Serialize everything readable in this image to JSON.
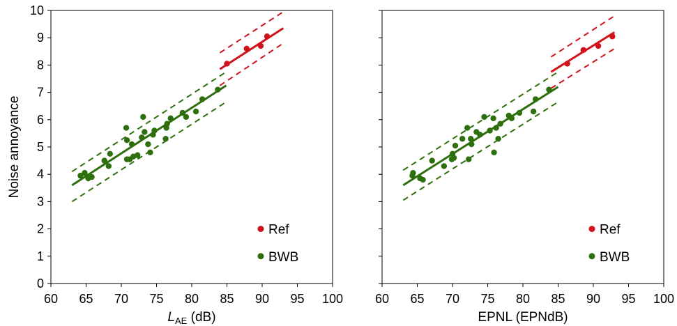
{
  "chart_data": [
    {
      "type": "scatter",
      "title": "",
      "xlabel": "L",
      "xlabel_sub": "AE",
      "xlabel_unit": "(dB)",
      "ylabel": "Noise annoyance",
      "xlim": [
        60,
        100
      ],
      "ylim": [
        0,
        10
      ],
      "xticks": [
        "60",
        "65",
        "70",
        "75",
        "80",
        "85",
        "90",
        "95",
        "100"
      ],
      "yticks": [
        "0",
        "1",
        "2",
        "3",
        "4",
        "5",
        "6",
        "7",
        "8",
        "9",
        "10"
      ],
      "grid": false,
      "legend_position": "bottom-right",
      "series": [
        {
          "name": "Ref",
          "color": "#d0121b",
          "points": [
            [
              85.0,
              8.05
            ],
            [
              87.8,
              8.6
            ],
            [
              89.8,
              8.7
            ],
            [
              90.7,
              9.05
            ]
          ],
          "fit": {
            "x": [
              84.0,
              93.0
            ],
            "y": [
              7.85,
              9.35
            ]
          },
          "band": {
            "x": [
              84.0,
              93.0
            ],
            "upper": [
              8.45,
              9.95
            ],
            "lower": [
              7.25,
              8.8
            ]
          }
        },
        {
          "name": "BWB",
          "color": "#2e6f0d",
          "points": [
            [
              64.2,
              3.95
            ],
            [
              64.8,
              4.05
            ],
            [
              65.3,
              3.85
            ],
            [
              65.8,
              3.9
            ],
            [
              67.6,
              4.5
            ],
            [
              68.2,
              4.3
            ],
            [
              68.4,
              4.75
            ],
            [
              70.7,
              5.7
            ],
            [
              70.8,
              5.25
            ],
            [
              70.8,
              4.55
            ],
            [
              71.2,
              4.55
            ],
            [
              71.5,
              5.1
            ],
            [
              71.7,
              4.65
            ],
            [
              72.3,
              4.7
            ],
            [
              72.9,
              5.35
            ],
            [
              73.1,
              6.1
            ],
            [
              73.3,
              5.55
            ],
            [
              73.8,
              5.1
            ],
            [
              74.1,
              4.8
            ],
            [
              74.5,
              5.45
            ],
            [
              74.7,
              5.6
            ],
            [
              76.3,
              5.3
            ],
            [
              76.4,
              5.7
            ],
            [
              76.5,
              5.85
            ],
            [
              77.0,
              6.05
            ],
            [
              78.7,
              6.25
            ],
            [
              79.2,
              6.1
            ],
            [
              80.6,
              6.3
            ],
            [
              81.5,
              6.75
            ],
            [
              83.7,
              7.1
            ]
          ],
          "fit": {
            "x": [
              63.0,
              84.9
            ],
            "y": [
              3.6,
              7.25
            ]
          },
          "band": {
            "x": [
              63.0,
              84.9
            ],
            "upper": [
              4.1,
              7.75
            ],
            "lower": [
              3.0,
              6.65
            ]
          }
        }
      ]
    },
    {
      "type": "scatter",
      "title": "",
      "xlabel": "EPNL (EPNdB)",
      "ylabel": "",
      "xlim": [
        60,
        100
      ],
      "ylim": [
        0,
        10
      ],
      "xticks": [
        "60",
        "65",
        "70",
        "75",
        "80",
        "85",
        "90",
        "95",
        "100"
      ],
      "yticks": [],
      "grid": false,
      "legend_position": "bottom-right",
      "series": [
        {
          "name": "Ref",
          "color": "#d0121b",
          "points": [
            [
              86.3,
              8.05
            ],
            [
              88.6,
              8.55
            ],
            [
              90.7,
              8.7
            ],
            [
              92.7,
              9.05
            ]
          ],
          "fit": {
            "x": [
              84.0,
              93.0
            ],
            "y": [
              7.75,
              9.2
            ]
          },
          "band": {
            "x": [
              84.0,
              93.0
            ],
            "upper": [
              8.3,
              9.8
            ],
            "lower": [
              7.15,
              8.6
            ]
          }
        },
        {
          "name": "BWB",
          "color": "#2e6f0d",
          "points": [
            [
              64.3,
              3.95
            ],
            [
              64.4,
              4.05
            ],
            [
              65.4,
              3.85
            ],
            [
              65.8,
              3.8
            ],
            [
              67.1,
              4.5
            ],
            [
              68.8,
              4.3
            ],
            [
              69.9,
              4.55
            ],
            [
              70.0,
              4.75
            ],
            [
              70.2,
              4.6
            ],
            [
              70.4,
              5.05
            ],
            [
              71.4,
              5.3
            ],
            [
              72.1,
              5.7
            ],
            [
              72.3,
              4.55
            ],
            [
              72.6,
              5.3
            ],
            [
              72.7,
              5.1
            ],
            [
              73.4,
              5.55
            ],
            [
              73.9,
              5.45
            ],
            [
              74.5,
              6.1
            ],
            [
              75.3,
              5.6
            ],
            [
              75.8,
              6.05
            ],
            [
              75.9,
              4.8
            ],
            [
              76.2,
              5.7
            ],
            [
              76.5,
              5.3
            ],
            [
              76.8,
              5.85
            ],
            [
              78.0,
              6.15
            ],
            [
              78.4,
              6.05
            ],
            [
              79.5,
              6.25
            ],
            [
              81.5,
              6.3
            ],
            [
              81.8,
              6.75
            ],
            [
              83.7,
              7.1
            ]
          ],
          "fit": {
            "x": [
              63.0,
              85.0
            ],
            "y": [
              3.6,
              7.2
            ]
          },
          "band": {
            "x": [
              63.0,
              85.0
            ],
            "upper": [
              4.15,
              7.75
            ],
            "lower": [
              3.05,
              6.65
            ]
          }
        }
      ]
    }
  ]
}
